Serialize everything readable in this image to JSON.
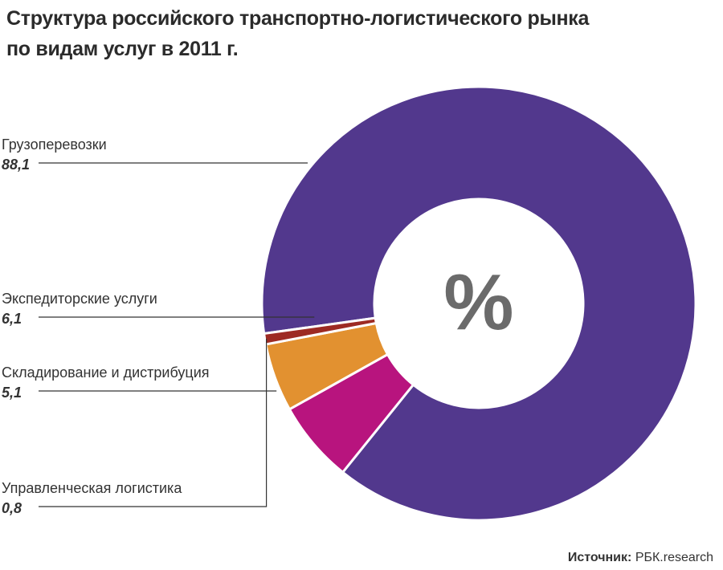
{
  "title_line1": "Структура российского транспортно-логистического рынка",
  "title_line2": "по видам услуг в 2011 г.",
  "center_symbol": "%",
  "source": {
    "label": "Источник:",
    "value": "РБК.research"
  },
  "chart_data": {
    "type": "pie",
    "donut": true,
    "title": "Структура российского транспортно-логистического рынка по видам услуг в 2011 г.",
    "unit": "%",
    "categories": [
      "Грузоперевозки",
      "Экспедиторские услуги",
      "Складирование и дистрибуция",
      "Управленческая логистика"
    ],
    "values": [
      88.1,
      6.1,
      5.1,
      0.8
    ],
    "value_labels": [
      "88,1",
      "6,1",
      "5,1",
      "0,8"
    ],
    "colors": [
      "#52388d",
      "#b8147e",
      "#e29130",
      "#9d2a23"
    ],
    "label_placement": "left"
  }
}
